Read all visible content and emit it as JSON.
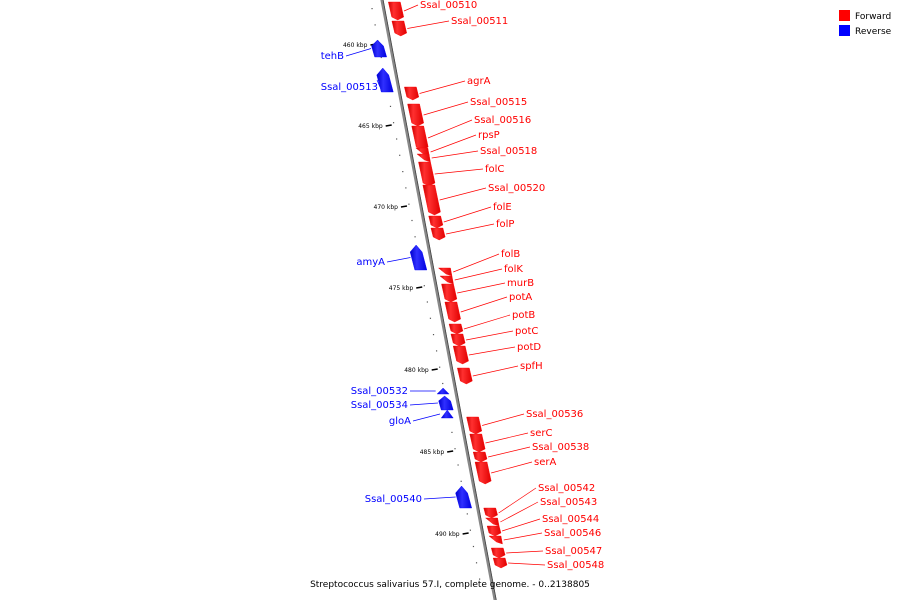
{
  "title": "Streptococcus salivarius 57.I, complete genome. - 0..2138805",
  "legend": [
    {
      "name": "Forward",
      "color": "#ff0000"
    },
    {
      "name": "Reverse",
      "color": "#0000ff"
    }
  ],
  "ticks": [
    {
      "label": "460 kbp"
    },
    {
      "label": "465 kbp"
    },
    {
      "label": "470 kbp"
    },
    {
      "label": "475 kbp"
    },
    {
      "label": "480 kbp"
    },
    {
      "label": "485 kbp"
    },
    {
      "label": "490 kbp"
    }
  ],
  "genes": [
    {
      "name": "Ssal_00510",
      "strand": "forward"
    },
    {
      "name": "Ssal_00511",
      "strand": "forward"
    },
    {
      "name": "tehB",
      "strand": "reverse"
    },
    {
      "name": "Ssal_00513",
      "strand": "reverse"
    },
    {
      "name": "agrA",
      "strand": "forward"
    },
    {
      "name": "Ssal_00515",
      "strand": "forward"
    },
    {
      "name": "Ssal_00516",
      "strand": "forward"
    },
    {
      "name": "rpsP",
      "strand": "forward"
    },
    {
      "name": "Ssal_00518",
      "strand": "forward"
    },
    {
      "name": "folC",
      "strand": "forward"
    },
    {
      "name": "Ssal_00520",
      "strand": "forward"
    },
    {
      "name": "folE",
      "strand": "forward"
    },
    {
      "name": "folP",
      "strand": "forward"
    },
    {
      "name": "amyA",
      "strand": "reverse"
    },
    {
      "name": "folB",
      "strand": "forward"
    },
    {
      "name": "folK",
      "strand": "forward"
    },
    {
      "name": "murB",
      "strand": "forward"
    },
    {
      "name": "potA",
      "strand": "forward"
    },
    {
      "name": "potB",
      "strand": "forward"
    },
    {
      "name": "potC",
      "strand": "forward"
    },
    {
      "name": "potD",
      "strand": "forward"
    },
    {
      "name": "spfH",
      "strand": "forward"
    },
    {
      "name": "Ssal_00532",
      "strand": "reverse"
    },
    {
      "name": "Ssal_00534",
      "strand": "reverse"
    },
    {
      "name": "gloA",
      "strand": "reverse"
    },
    {
      "name": "Ssal_00536",
      "strand": "forward"
    },
    {
      "name": "serC",
      "strand": "forward"
    },
    {
      "name": "Ssal_00538",
      "strand": "forward"
    },
    {
      "name": "serA",
      "strand": "forward"
    },
    {
      "name": "Ssal_00540",
      "strand": "reverse"
    },
    {
      "name": "Ssal_00542",
      "strand": "forward"
    },
    {
      "name": "Ssal_00543",
      "strand": "forward"
    },
    {
      "name": "Ssal_00544",
      "strand": "forward"
    },
    {
      "name": "Ssal_00546",
      "strand": "forward"
    },
    {
      "name": "Ssal_00547",
      "strand": "forward"
    },
    {
      "name": "Ssal_00548",
      "strand": "forward"
    }
  ]
}
